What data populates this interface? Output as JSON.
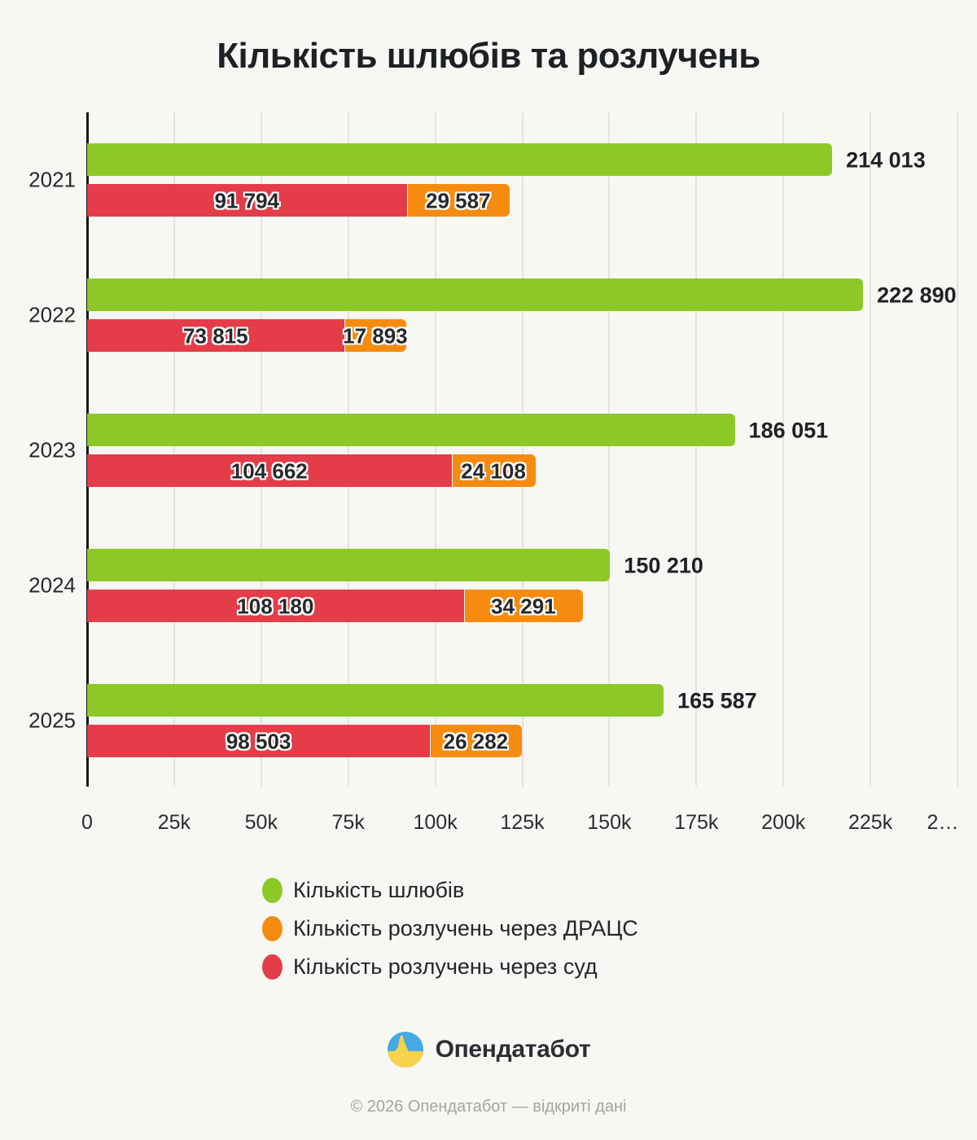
{
  "title": "Кількість шлюбів та розлучень",
  "colors": {
    "marriages": "#8cc927",
    "dracs": "#f78b0f",
    "court": "#e43c48",
    "background": "#f7f8f4",
    "grid": "#e7e2de",
    "axis": "#17181a"
  },
  "chart_data": {
    "type": "bar",
    "orientation": "horizontal",
    "title": "Кількість шлюбів та розлучень",
    "categories": [
      "2021",
      "2022",
      "2023",
      "2024",
      "2025"
    ],
    "series": [
      {
        "name": "Кількість шлюбів",
        "color_key": "marriages",
        "values": [
          214013,
          222890,
          186051,
          150210,
          165587
        ],
        "labels": [
          "214 013",
          "222 890",
          "186 051",
          "150 210",
          "165 587"
        ]
      },
      {
        "name": "Кількість розлучень через ДРАЦС",
        "color_key": "dracs",
        "values": [
          29587,
          17893,
          24108,
          34291,
          26282
        ],
        "labels": [
          "29 587",
          "17 893",
          "24 108",
          "34 291",
          "26 282"
        ]
      },
      {
        "name": "Кількість розлучень через суд",
        "color_key": "court",
        "values": [
          91794,
          73815,
          104662,
          108180,
          98503
        ],
        "labels": [
          "91 794",
          "73 815",
          "104 662",
          "108 180",
          "98 503"
        ]
      }
    ],
    "stacking": "divorce bars stacked: court (red) first, then DRACS (orange); marriages bar separate above",
    "xlim": [
      0,
      250000
    ],
    "x_tick_values": [
      0,
      25000,
      50000,
      75000,
      100000,
      125000,
      150000,
      175000,
      200000,
      225000,
      250000
    ],
    "x_tick_labels": [
      "0",
      "25k",
      "50k",
      "75k",
      "100k",
      "125k",
      "150k",
      "175k",
      "200k",
      "225k",
      "2…"
    ],
    "grid": true,
    "legend_position": "bottom"
  },
  "footer": {
    "logo_name": "Опендатабот",
    "copyright": "© 2026 Опендатабот  —  відкриті дані"
  }
}
